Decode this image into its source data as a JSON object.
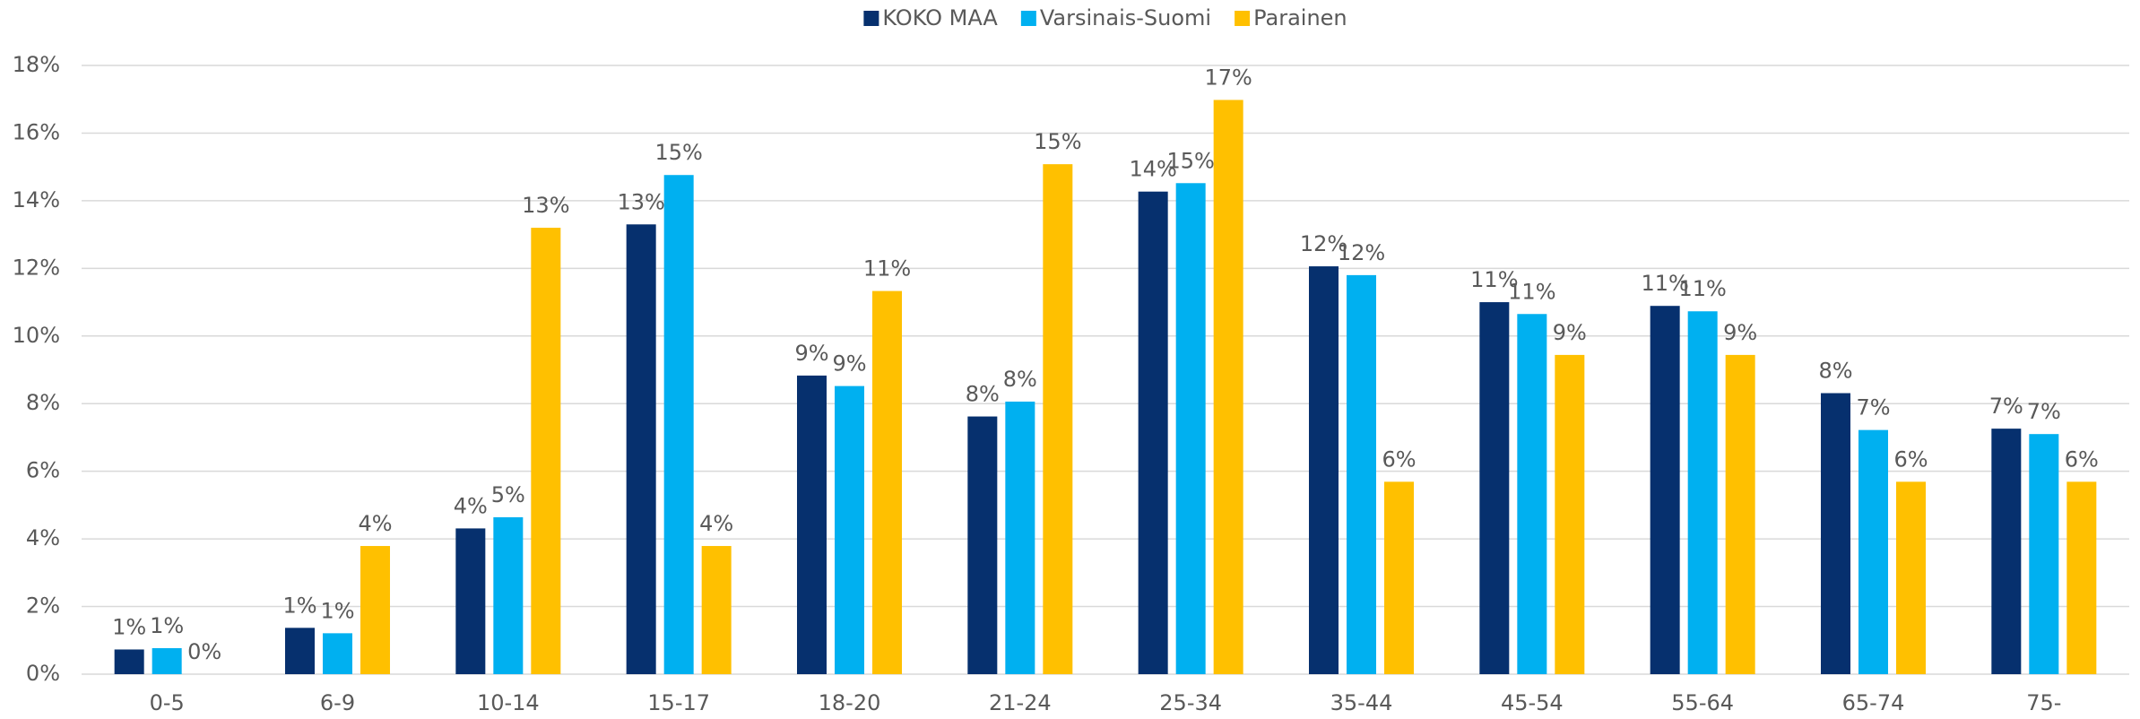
{
  "chart_data": {
    "type": "bar",
    "categories": [
      "0-5",
      "6-9",
      "10-14",
      "15-17",
      "18-20",
      "21-24",
      "25-34",
      "35-44",
      "45-54",
      "55-64",
      "65-74",
      "75-"
    ],
    "series": [
      {
        "name": "KOKO MAA",
        "color": "#06306e",
        "values": [
          0.73,
          1.37,
          4.31,
          13.3,
          8.83,
          7.62,
          14.27,
          12.06,
          11.0,
          10.89,
          8.31,
          7.26
        ],
        "value_labels": [
          "1%",
          "1%",
          "4%",
          "13%",
          "9%",
          "8%",
          "14%",
          "12%",
          "11%",
          "11%",
          "8%",
          "7%"
        ]
      },
      {
        "name": "Varsinais-Suomi",
        "color": "#00b0f0",
        "values": [
          0.77,
          1.21,
          4.64,
          14.76,
          8.52,
          8.06,
          14.52,
          11.8,
          10.65,
          10.73,
          7.22,
          7.1
        ],
        "value_labels": [
          "1%",
          "1%",
          "5%",
          "15%",
          "9%",
          "8%",
          "15%",
          "12%",
          "11%",
          "11%",
          "7%",
          "7%"
        ]
      },
      {
        "name": "Parainen",
        "color": "#ffc000",
        "values": [
          0,
          3.79,
          13.2,
          3.79,
          11.33,
          15.08,
          16.98,
          5.69,
          9.44,
          9.44,
          5.69,
          5.69
        ],
        "value_labels": [
          "0%",
          "4%",
          "13%",
          "4%",
          "11%",
          "15%",
          "17%",
          "6%",
          "9%",
          "9%",
          "6%",
          "6%"
        ]
      }
    ],
    "ylim": [
      0,
      18
    ],
    "yticks": [
      {
        "value": 0,
        "label": "0%"
      },
      {
        "value": 2,
        "label": "2%"
      },
      {
        "value": 4,
        "label": "4%"
      },
      {
        "value": 6,
        "label": "6%"
      },
      {
        "value": 8,
        "label": "8%"
      },
      {
        "value": 10,
        "label": "10%"
      },
      {
        "value": 12,
        "label": "12%"
      },
      {
        "value": 14,
        "label": "14%"
      },
      {
        "value": 16,
        "label": "16%"
      },
      {
        "value": 18,
        "label": "18%"
      }
    ],
    "grid": true,
    "legend": "top"
  }
}
